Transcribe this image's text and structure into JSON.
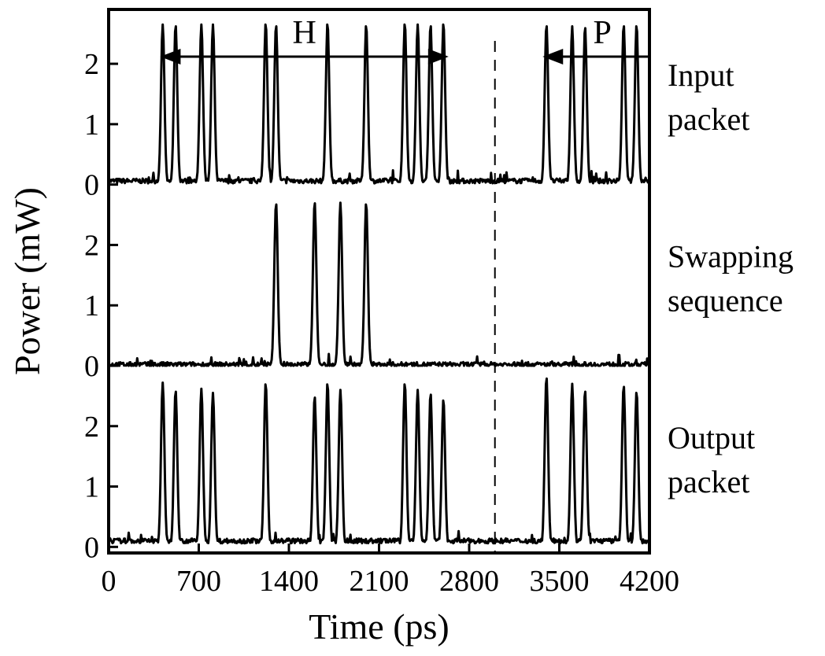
{
  "chart_data": {
    "type": "line",
    "xlabel": "Time (ps)",
    "ylabel": "Power (mW)",
    "xlim": [
      0,
      4200
    ],
    "x_ticks": [
      "0",
      "700",
      "1400",
      "2100",
      "2800",
      "3500",
      "4200"
    ],
    "panel_ylim": [
      -0.1,
      2.9
    ],
    "y_ticks": [
      "0",
      "1",
      "2"
    ],
    "pulse_width_ps": 30,
    "divider_x": 3000,
    "annotations": {
      "H": {
        "label": "H",
        "from": 400,
        "to": 2640
      },
      "P": {
        "label": "P",
        "from": 3370,
        "to": 4200
      }
    },
    "series": [
      {
        "name": "Input packet",
        "label_lines": [
          "Input",
          "packet"
        ],
        "baseline": 0.06,
        "peaks": [
          [
            420,
            2.65
          ],
          [
            520,
            2.65
          ],
          [
            720,
            2.65
          ],
          [
            810,
            2.65
          ],
          [
            1220,
            2.68
          ],
          [
            1300,
            2.65
          ],
          [
            1700,
            2.68
          ],
          [
            2000,
            2.65
          ],
          [
            2300,
            2.68
          ],
          [
            2400,
            2.65
          ],
          [
            2500,
            2.65
          ],
          [
            2600,
            2.68
          ],
          [
            3400,
            2.65
          ],
          [
            3600,
            2.62
          ],
          [
            3700,
            2.62
          ],
          [
            4000,
            2.65
          ],
          [
            4100,
            2.65
          ]
        ]
      },
      {
        "name": "Swapping sequence",
        "label_lines": [
          "Swapping",
          "sequence"
        ],
        "baseline": 0.02,
        "peaks": [
          [
            1300,
            2.7
          ],
          [
            1600,
            2.72
          ],
          [
            1800,
            2.7
          ],
          [
            2000,
            2.7
          ]
        ]
      },
      {
        "name": "Output packet",
        "label_lines": [
          "Output",
          "packet"
        ],
        "baseline": 0.1,
        "peaks": [
          [
            420,
            2.72
          ],
          [
            520,
            2.6
          ],
          [
            720,
            2.62
          ],
          [
            810,
            2.55
          ],
          [
            1220,
            2.72
          ],
          [
            1600,
            2.5
          ],
          [
            1700,
            2.72
          ],
          [
            1800,
            2.6
          ],
          [
            2300,
            2.72
          ],
          [
            2400,
            2.6
          ],
          [
            2500,
            2.55
          ],
          [
            2600,
            2.45
          ],
          [
            3400,
            2.82
          ],
          [
            3600,
            2.7
          ],
          [
            3700,
            2.6
          ],
          [
            4000,
            2.68
          ],
          [
            4100,
            2.58
          ]
        ]
      }
    ]
  }
}
